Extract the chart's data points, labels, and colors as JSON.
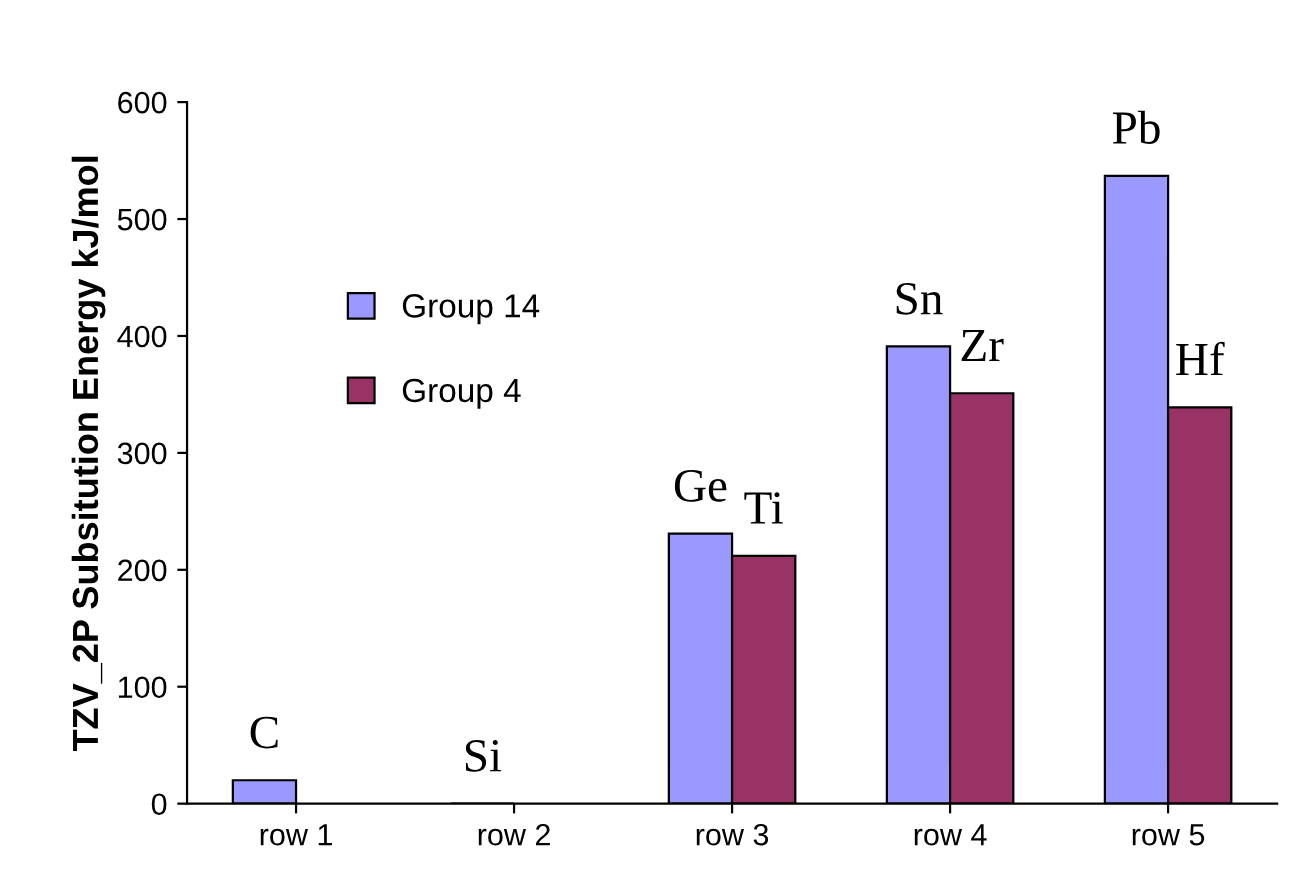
{
  "chart_data": {
    "type": "bar",
    "ylabel": "TZV_2P Subsitution Energy kJ/mol",
    "categories": [
      "row 1",
      "row 2",
      "row 3",
      "row 4",
      "row 5"
    ],
    "series": [
      {
        "name": "Group 14",
        "color": "#9999ff",
        "values": [
          20,
          0,
          231,
          391,
          537
        ],
        "value_labels": [
          "C",
          "Si",
          "Ge",
          "Sn",
          "Pb"
        ]
      },
      {
        "name": "Group 4",
        "color": "#993366",
        "values": [
          null,
          null,
          212,
          351,
          339
        ],
        "value_labels": [
          null,
          null,
          "Ti",
          "Zr",
          "Hf"
        ]
      }
    ],
    "ylim": [
      0,
      600
    ],
    "yticks": [
      0,
      100,
      200,
      300,
      400,
      500,
      600
    ],
    "grid": false,
    "legend": "left"
  }
}
